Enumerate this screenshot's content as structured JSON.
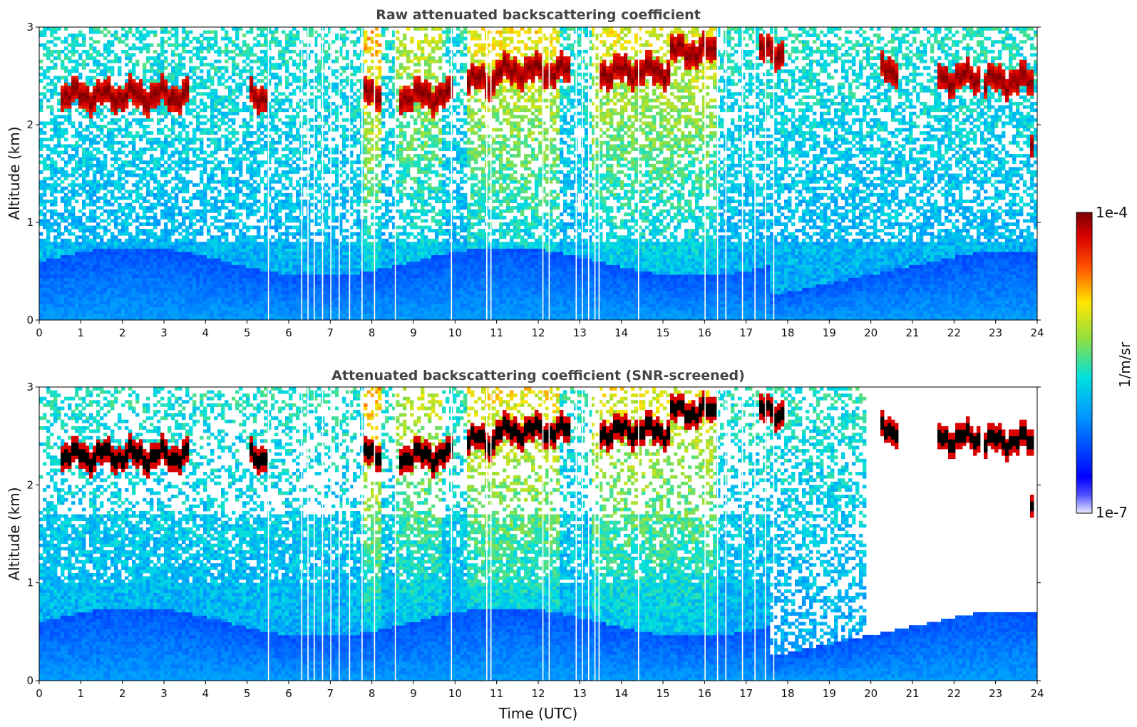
{
  "chart_data": [
    {
      "type": "heatmap",
      "title": "Raw attenuated backscattering coefficient",
      "ylabel": "Altitude (km)",
      "xlabel": "",
      "xlim": [
        0,
        24
      ],
      "ylim": [
        0,
        3
      ],
      "x_ticks": [
        "0",
        "1",
        "2",
        "3",
        "4",
        "5",
        "6",
        "7",
        "8",
        "9",
        "10",
        "11",
        "12",
        "13",
        "14",
        "15",
        "16",
        "17",
        "18",
        "19",
        "20",
        "21",
        "22",
        "23",
        "24"
      ],
      "y_ticks": [
        "0",
        "1",
        "2",
        "3"
      ],
      "screened": false,
      "cloud_layers": [
        {
          "t_start": 0.5,
          "t_end": 3.6,
          "alt": 2.3
        },
        {
          "t_start": 5.1,
          "t_end": 5.5,
          "alt": 2.3
        },
        {
          "t_start": 7.8,
          "t_end": 8.2,
          "alt": 2.35
        },
        {
          "t_start": 8.7,
          "t_end": 9.9,
          "alt": 2.3
        },
        {
          "t_start": 10.3,
          "t_end": 11.0,
          "alt": 2.45
        },
        {
          "t_start": 11.0,
          "t_end": 12.8,
          "alt": 2.55
        },
        {
          "t_start": 13.5,
          "t_end": 14.3,
          "alt": 2.55
        },
        {
          "t_start": 14.3,
          "t_end": 15.2,
          "alt": 2.55
        },
        {
          "t_start": 15.2,
          "t_end": 16.3,
          "alt": 2.75
        },
        {
          "t_start": 17.3,
          "t_end": 17.9,
          "alt": 2.75
        },
        {
          "t_start": 20.2,
          "t_end": 20.7,
          "alt": 2.58
        },
        {
          "t_start": 21.6,
          "t_end": 22.6,
          "alt": 2.48
        },
        {
          "t_start": 22.7,
          "t_end": 23.9,
          "alt": 2.45
        },
        {
          "t_start": 23.8,
          "t_end": 23.95,
          "alt": 1.8
        }
      ]
    },
    {
      "type": "heatmap",
      "title": "Attenuated backscattering coefficient (SNR-screened)",
      "ylabel": "Altitude (km)",
      "xlabel": "Time (UTC)",
      "xlim": [
        0,
        24
      ],
      "ylim": [
        0,
        3
      ],
      "x_ticks": [
        "0",
        "1",
        "2",
        "3",
        "4",
        "5",
        "6",
        "7",
        "8",
        "9",
        "10",
        "11",
        "12",
        "13",
        "14",
        "15",
        "16",
        "17",
        "18",
        "19",
        "20",
        "21",
        "22",
        "23",
        "24"
      ],
      "y_ticks": [
        "0",
        "1",
        "2",
        "3"
      ],
      "screened": true
    }
  ],
  "colorbar": {
    "label": "1/m/sr",
    "max_label": "1e-4",
    "min_label": "1e-7",
    "colors": [
      "#e8e8ff",
      "#0000ff",
      "#00c8ff",
      "#ffe600",
      "#ff0000",
      "#7a0000"
    ]
  }
}
